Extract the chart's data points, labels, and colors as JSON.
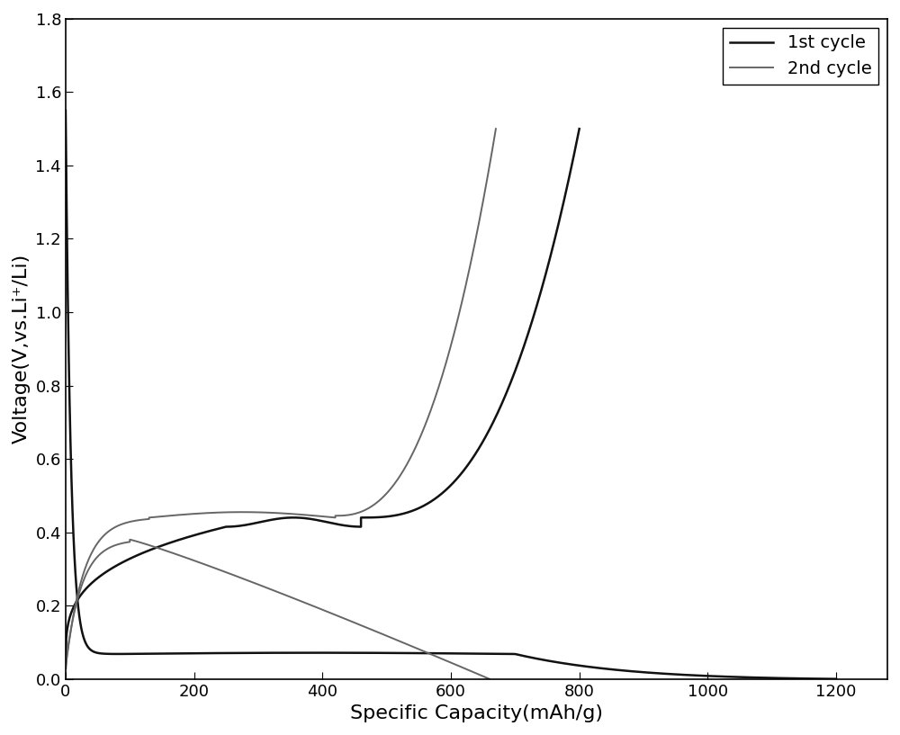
{
  "title": "",
  "xlabel": "Specific Capacity(mAh/g)",
  "ylabel": "Voltage(V,vs.Li⁺/Li)",
  "xlim": [
    0,
    1280
  ],
  "ylim": [
    0,
    1.8
  ],
  "xticks": [
    0,
    200,
    400,
    600,
    800,
    1000,
    1200
  ],
  "yticks": [
    0.0,
    0.2,
    0.4,
    0.6,
    0.8,
    1.0,
    1.2,
    1.4,
    1.6,
    1.8
  ],
  "legend_labels": [
    "1st cycle",
    "2nd cycle"
  ],
  "color_1st": "#111111",
  "color_2nd": "#666666",
  "lw_1st": 1.8,
  "lw_2nd": 1.4,
  "background_color": "#ffffff"
}
